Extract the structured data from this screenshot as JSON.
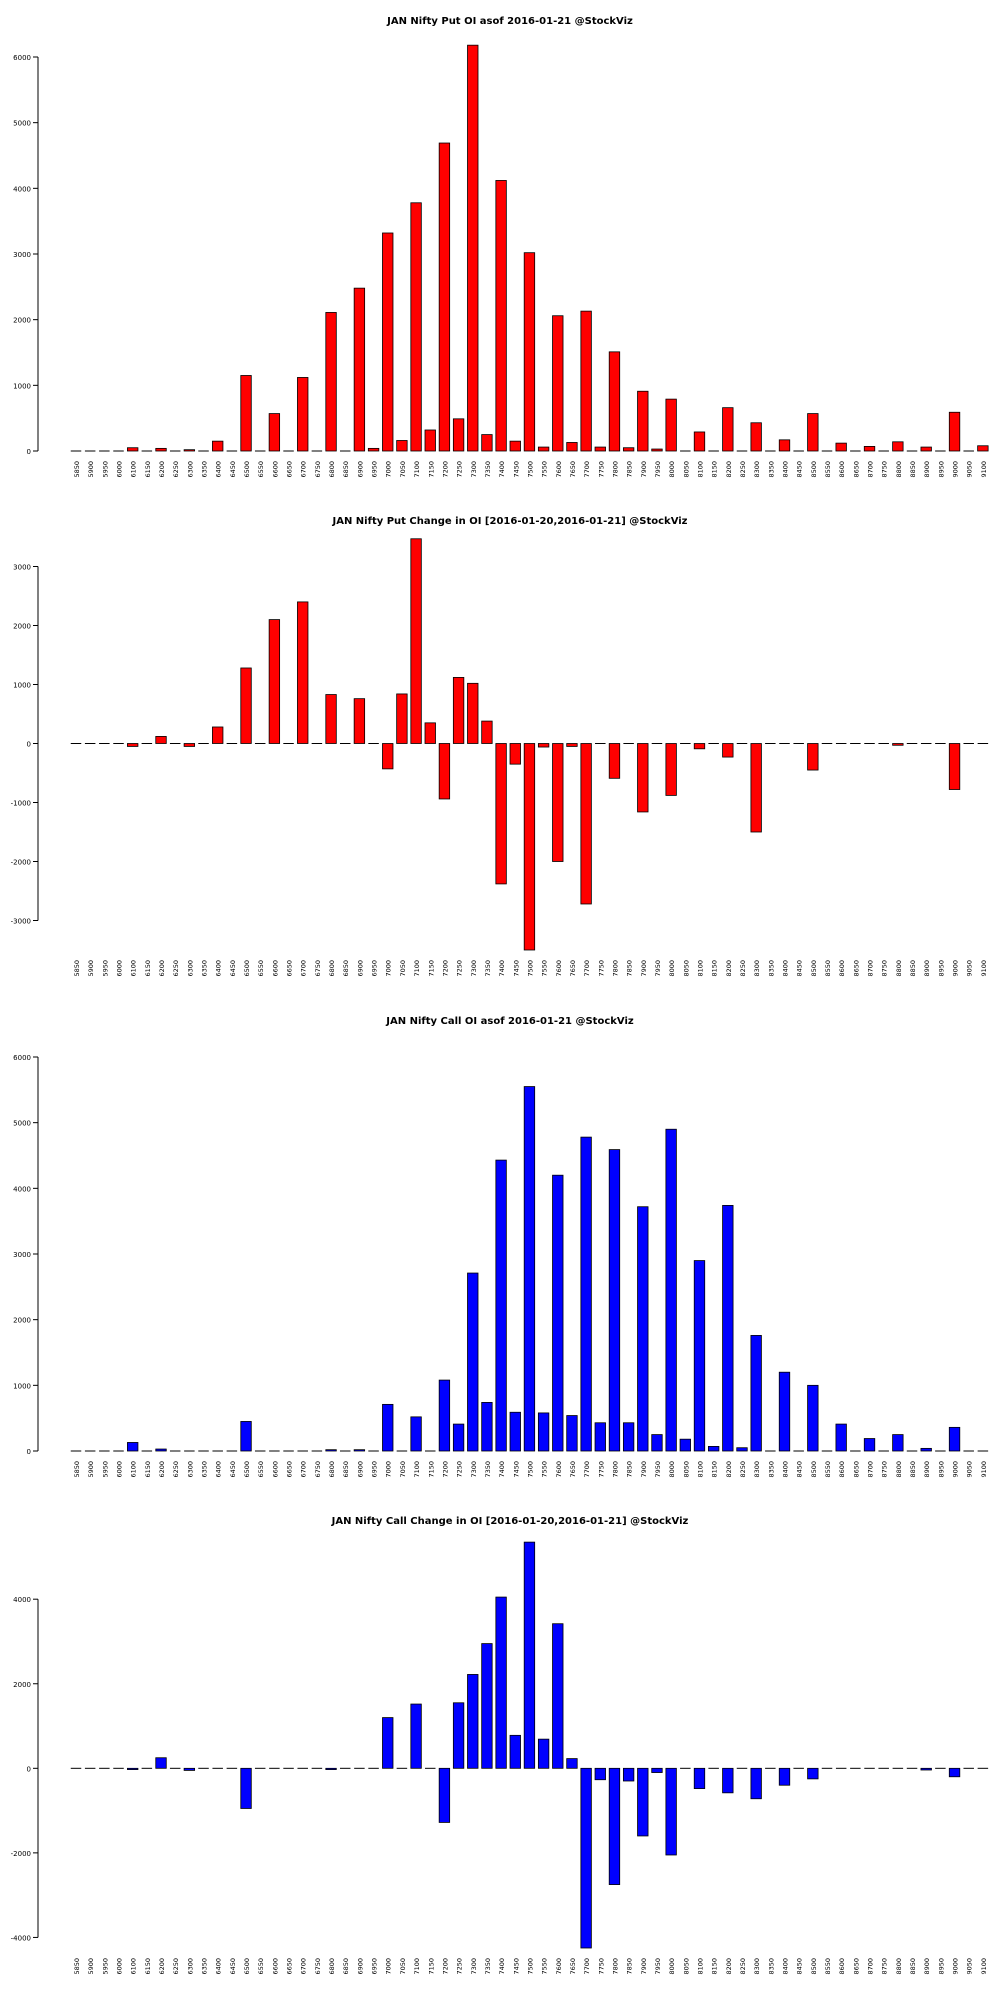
{
  "strikes": [
    "5850",
    "5900",
    "5950",
    "6000",
    "6100",
    "6150",
    "6200",
    "6250",
    "6300",
    "6350",
    "6400",
    "6450",
    "6500",
    "6550",
    "6600",
    "6650",
    "6700",
    "6750",
    "6800",
    "6850",
    "6900",
    "6950",
    "7000",
    "7050",
    "7100",
    "7150",
    "7200",
    "7250",
    "7300",
    "7350",
    "7400",
    "7450",
    "7500",
    "7550",
    "7600",
    "7650",
    "7700",
    "7750",
    "7800",
    "7850",
    "7900",
    "7950",
    "8000",
    "8050",
    "8100",
    "8150",
    "8200",
    "8250",
    "8300",
    "8350",
    "8400",
    "8450",
    "8500",
    "8550",
    "8600",
    "8650",
    "8700",
    "8750",
    "8800",
    "8850",
    "8900",
    "8950",
    "9000",
    "9050",
    "9100"
  ],
  "chart_data": [
    {
      "type": "bar",
      "title": "JAN Nifty Put OI asof 2016-01-21 @StockViz",
      "color": "#ff0000",
      "ylim": [
        0,
        6000
      ],
      "yticks": [
        "0",
        "1000",
        "2000",
        "3000",
        "4000",
        "5000",
        "6000"
      ],
      "values": [
        0,
        0,
        0,
        0,
        50,
        0,
        40,
        0,
        20,
        0,
        150,
        0,
        1150,
        0,
        570,
        0,
        1120,
        0,
        2110,
        0,
        2480,
        40,
        3320,
        160,
        3780,
        320,
        4690,
        490,
        6180,
        250,
        4120,
        150,
        3020,
        60,
        2060,
        130,
        2130,
        60,
        1510,
        50,
        910,
        30,
        790,
        0,
        290,
        0,
        660,
        0,
        430,
        0,
        170,
        0,
        570,
        0,
        120,
        0,
        70,
        0,
        140,
        0,
        60,
        0,
        590,
        0,
        80
      ],
      "xlabel": "",
      "ylabel": ""
    },
    {
      "type": "bar",
      "title": "JAN Nifty Put Change in OI [2016-01-20,2016-01-21] @StockViz",
      "color": "#ff0000",
      "ylim": [
        -3500,
        3500
      ],
      "yticks": [
        "-3000",
        "-2000",
        "-1000",
        "0",
        "1000",
        "2000",
        "3000"
      ],
      "values": [
        0,
        0,
        0,
        0,
        -50,
        0,
        120,
        0,
        -50,
        0,
        280,
        0,
        1280,
        0,
        2100,
        0,
        2400,
        0,
        830,
        0,
        760,
        0,
        -430,
        840,
        3470,
        350,
        -940,
        1120,
        1020,
        380,
        -2380,
        -350,
        -3500,
        -60,
        -2000,
        -50,
        -2720,
        0,
        -590,
        0,
        -1160,
        0,
        -880,
        0,
        -90,
        0,
        -230,
        0,
        -1500,
        0,
        0,
        0,
        -450,
        0,
        0,
        0,
        0,
        0,
        -30,
        0,
        0,
        0,
        -780,
        0,
        0
      ],
      "xlabel": "",
      "ylabel": ""
    },
    {
      "type": "bar",
      "title": "JAN Nifty Call OI asof 2016-01-21 @StockViz",
      "color": "#0000ff",
      "ylim": [
        0,
        6000
      ],
      "yticks": [
        "0",
        "1000",
        "2000",
        "3000",
        "4000",
        "5000",
        "6000"
      ],
      "values": [
        0,
        0,
        0,
        0,
        130,
        0,
        30,
        0,
        0,
        0,
        0,
        0,
        450,
        0,
        0,
        0,
        0,
        0,
        20,
        0,
        20,
        0,
        710,
        0,
        520,
        0,
        1080,
        410,
        2710,
        740,
        4430,
        590,
        5550,
        580,
        4200,
        540,
        4780,
        430,
        4590,
        430,
        3720,
        250,
        4900,
        180,
        2900,
        70,
        3740,
        50,
        1760,
        0,
        1200,
        0,
        1000,
        0,
        410,
        0,
        190,
        0,
        250,
        0,
        40,
        0,
        360,
        0,
        0
      ],
      "xlabel": "",
      "ylabel": ""
    },
    {
      "type": "bar",
      "title": "JAN Nifty Call Change in OI [2016-01-20,2016-01-21] @StockViz",
      "color": "#0000ff",
      "ylim": [
        -4250,
        5400
      ],
      "yticks": [
        "-4000",
        "-2000",
        "0",
        "2000",
        "4000"
      ],
      "values": [
        0,
        0,
        0,
        0,
        -30,
        0,
        250,
        0,
        -50,
        0,
        0,
        0,
        -950,
        0,
        0,
        0,
        20,
        0,
        -30,
        0,
        -20,
        0,
        1200,
        0,
        1520,
        20,
        -1280,
        1550,
        2220,
        2950,
        4050,
        780,
        5350,
        690,
        3420,
        230,
        -4250,
        -270,
        -2750,
        -300,
        -1600,
        -100,
        -2050,
        0,
        -480,
        0,
        -580,
        0,
        -720,
        0,
        -400,
        0,
        -250,
        0,
        0,
        0,
        0,
        0,
        0,
        0,
        -40,
        0,
        -200,
        0,
        0
      ],
      "xlabel": "",
      "ylabel": ""
    }
  ]
}
